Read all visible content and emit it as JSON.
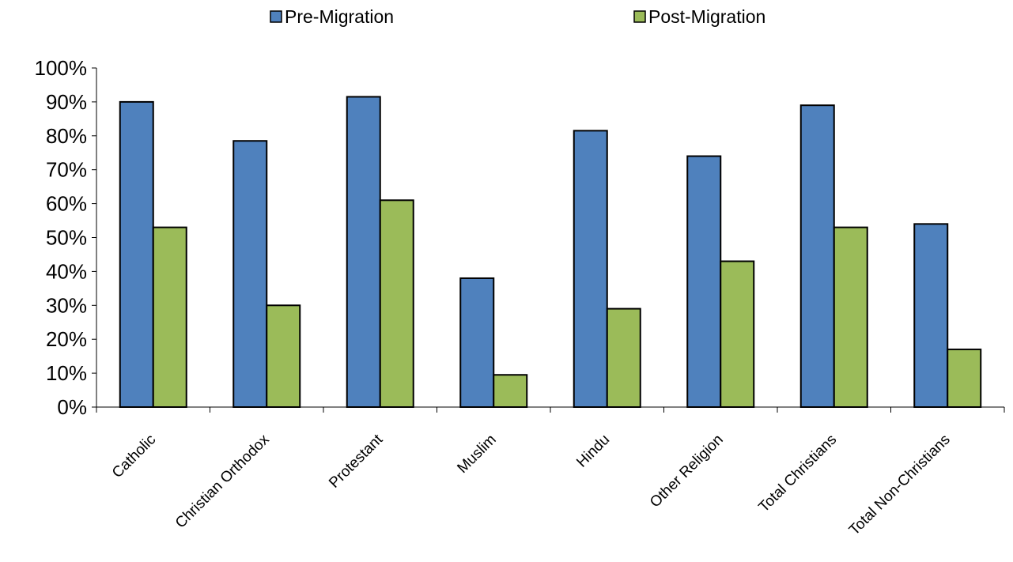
{
  "chart_data": {
    "type": "bar",
    "title": "",
    "xlabel": "",
    "ylabel": "",
    "categories": [
      "Catholic",
      "Christian Orthodox",
      "Protestant",
      "Muslim",
      "Hindu",
      "Other Religion",
      "Total Christians",
      "Total Non-Christians"
    ],
    "series": [
      {
        "name": "Pre-Migration",
        "color": "#4f81bd",
        "values": [
          90,
          78.5,
          91.5,
          38,
          81.5,
          74,
          89,
          54
        ]
      },
      {
        "name": "Post-Migration",
        "color": "#9bbb59",
        "values": [
          53,
          30,
          61,
          9.5,
          29,
          43,
          53,
          17
        ]
      }
    ],
    "ylim": [
      0,
      100
    ],
    "yticks": [
      0,
      10,
      20,
      30,
      40,
      50,
      60,
      70,
      80,
      90,
      100
    ],
    "ytick_labels": [
      "0%",
      "10%",
      "20%",
      "30%",
      "40%",
      "50%",
      "60%",
      "70%",
      "80%",
      "90%",
      "100%"
    ],
    "grid": false,
    "legend_position": "top"
  }
}
